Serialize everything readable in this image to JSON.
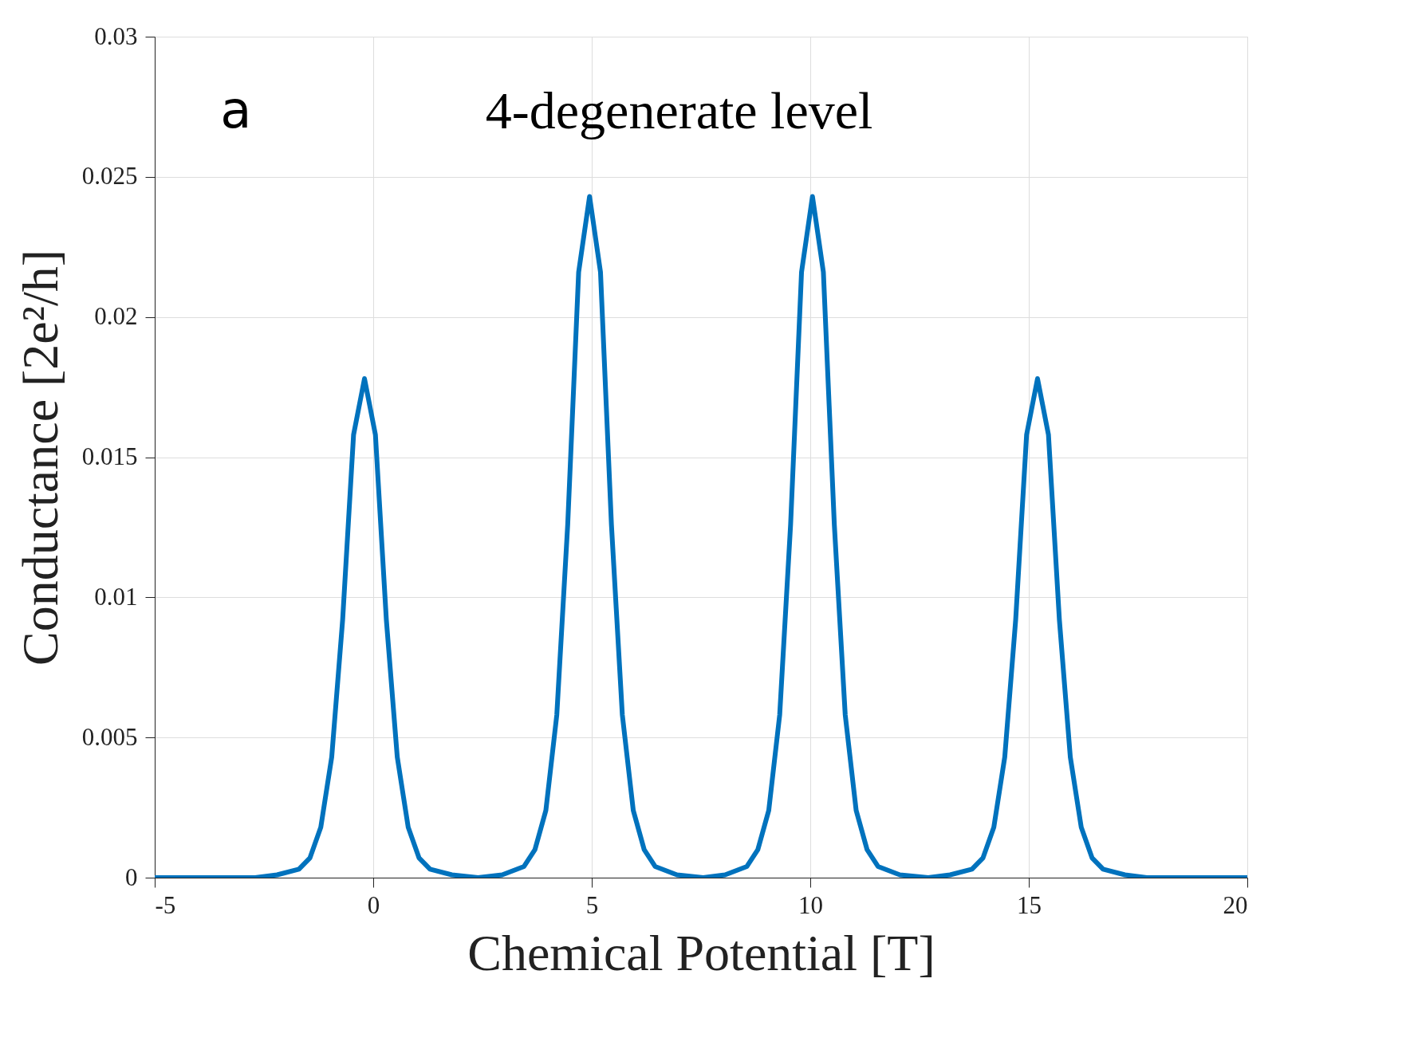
{
  "chart_data": {
    "type": "line",
    "xlabel": "Chemical Potential [T]",
    "ylabel": "Conductance [2e²/h]",
    "annotations": [
      "a",
      "4-degenerate level"
    ],
    "xlim": [
      -5,
      20
    ],
    "xticks": [
      -5,
      0,
      5,
      10,
      15,
      20
    ],
    "ylim": [
      0,
      0.03
    ],
    "yticks": [
      0,
      0.005,
      0.01,
      0.015,
      0.02,
      0.025,
      0.03
    ],
    "grid": true,
    "marker": "none",
    "line_style": "solid",
    "series": [
      {
        "color": "#0072bd",
        "x": [
          -5,
          -2.7,
          -2.2,
          -1.7,
          -1.45,
          -1.2,
          -0.95,
          -0.7,
          -0.45,
          -0.2,
          0.05,
          0.3,
          0.55,
          0.8,
          1.05,
          1.3,
          1.8,
          2.4,
          2.95,
          3.45,
          3.7,
          3.95,
          4.2,
          4.45,
          4.7,
          4.95,
          5.2,
          5.45,
          5.7,
          5.95,
          6.2,
          6.45,
          6.95,
          7.55,
          8.05,
          8.55,
          8.8,
          9.05,
          9.3,
          9.55,
          9.8,
          10.05,
          10.3,
          10.55,
          10.8,
          11.05,
          11.3,
          11.55,
          12.05,
          12.7,
          13.2,
          13.7,
          13.95,
          14.2,
          14.45,
          14.7,
          14.95,
          15.2,
          15.45,
          15.7,
          15.95,
          16.2,
          16.45,
          16.7,
          17.2,
          17.7,
          20
        ],
        "values": [
          0,
          0,
          0.0001,
          0.0003,
          0.0007,
          0.0018,
          0.0043,
          0.0092,
          0.0158,
          0.0178,
          0.0158,
          0.0092,
          0.0043,
          0.0018,
          0.0007,
          0.0003,
          0.0001,
          0,
          0.0001,
          0.0004,
          0.001,
          0.0024,
          0.0058,
          0.0126,
          0.0216,
          0.0243,
          0.0216,
          0.0126,
          0.0058,
          0.0024,
          0.001,
          0.0004,
          0.0001,
          0,
          0.0001,
          0.0004,
          0.001,
          0.0024,
          0.0058,
          0.0126,
          0.0216,
          0.0243,
          0.0216,
          0.0126,
          0.0058,
          0.0024,
          0.001,
          0.0004,
          0.0001,
          0,
          0.0001,
          0.0003,
          0.0007,
          0.0018,
          0.0043,
          0.0092,
          0.0158,
          0.0178,
          0.0158,
          0.0092,
          0.0043,
          0.0018,
          0.0007,
          0.0003,
          0.0001,
          0,
          0
        ]
      }
    ]
  }
}
